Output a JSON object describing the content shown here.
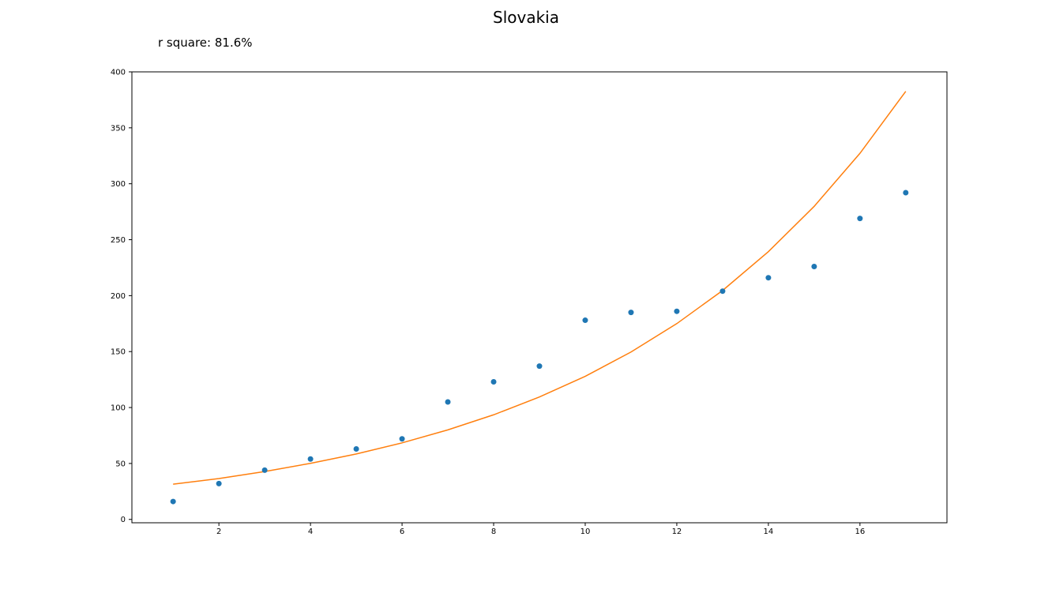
{
  "chart_data": {
    "type": "scatter",
    "title": "Slovakia",
    "annotation": "r square: 81.6%",
    "xlabel": "",
    "ylabel": "",
    "xlim": [
      0.1,
      17.9
    ],
    "ylim": [
      -3,
      400
    ],
    "xticks": [
      2,
      4,
      6,
      8,
      10,
      12,
      14,
      16
    ],
    "yticks": [
      0,
      50,
      100,
      150,
      200,
      250,
      300,
      350,
      400
    ],
    "grid": false,
    "series": [
      {
        "kind": "scatter",
        "color": "#1f77b4",
        "x": [
          1,
          2,
          3,
          4,
          5,
          6,
          7,
          8,
          9,
          10,
          11,
          12,
          13,
          14,
          15,
          16,
          17
        ],
        "y": [
          16,
          32,
          44,
          54,
          63,
          72,
          105,
          123,
          137,
          178,
          185,
          186,
          204,
          216,
          226,
          269,
          292
        ]
      },
      {
        "kind": "line",
        "color": "#ff7f0e",
        "x": [
          1,
          2,
          3,
          4,
          5,
          6,
          7,
          8,
          9,
          10,
          11,
          12,
          13,
          14,
          15,
          16,
          17
        ],
        "y": [
          31.5,
          36.5,
          42.8,
          50.1,
          58.5,
          68.4,
          80,
          93.5,
          109.4,
          127.9,
          149.6,
          175,
          204.6,
          239.3,
          279.8,
          327.2,
          382.6
        ]
      }
    ]
  }
}
